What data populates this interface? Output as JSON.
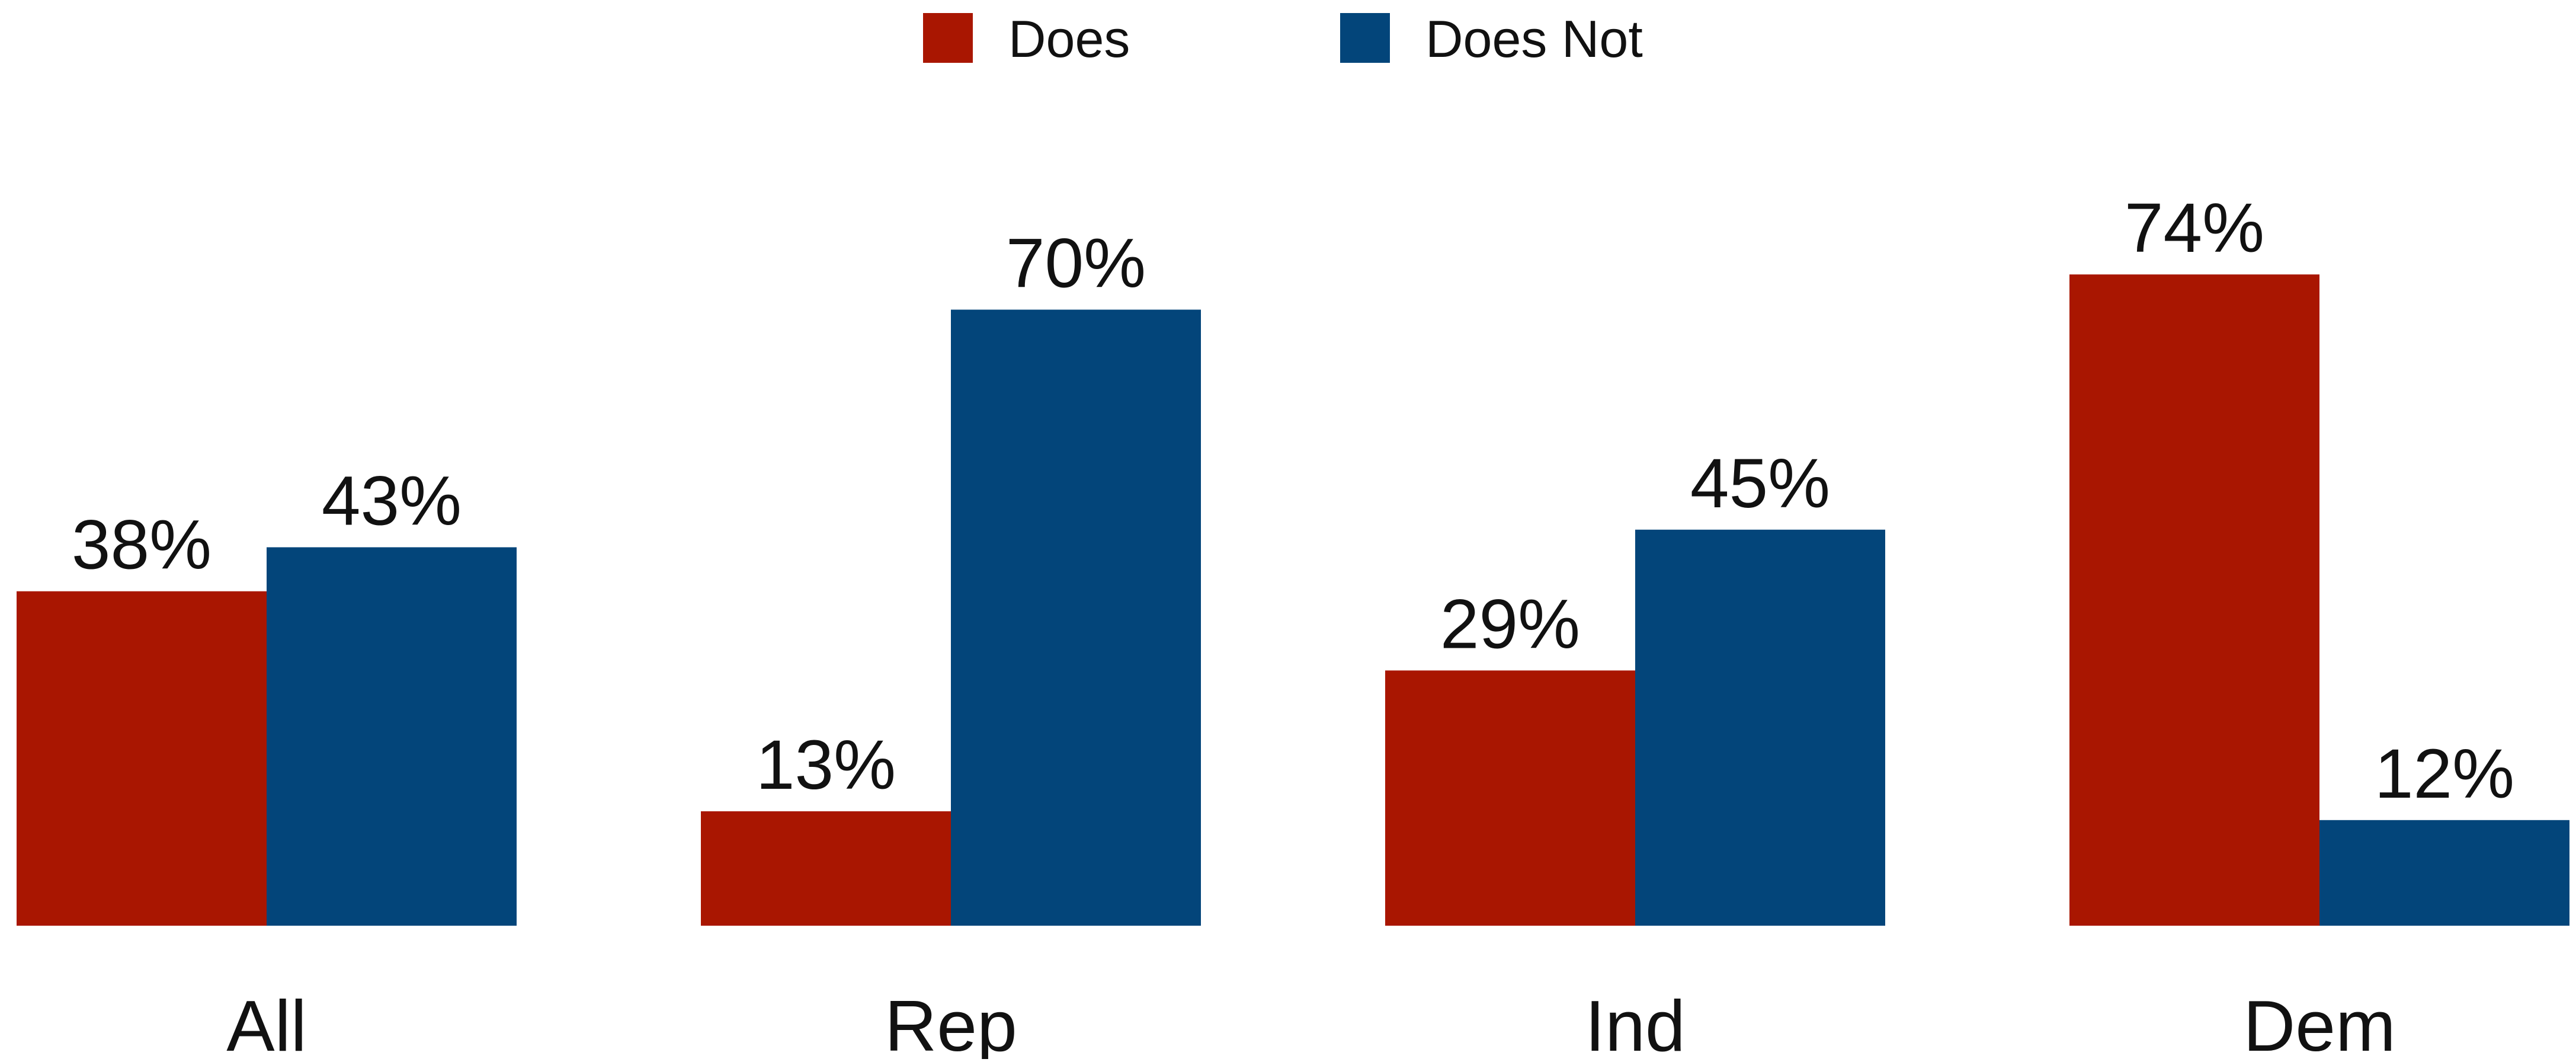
{
  "chart_data": {
    "type": "bar",
    "categories": [
      "All",
      "Rep",
      "Ind",
      "Dem"
    ],
    "series": [
      {
        "name": "Does",
        "values": [
          38,
          13,
          29,
          74
        ],
        "labels": [
          "38%",
          "13%",
          "29%",
          "74%"
        ],
        "color": "#A91601"
      },
      {
        "name": "Does Not",
        "values": [
          43,
          70,
          45,
          12
        ],
        "labels": [
          "43%",
          "70%",
          "45%",
          "12%"
        ],
        "color": "#03457A"
      }
    ],
    "ylim": [
      0,
      100
    ],
    "legend_position": "top-center",
    "grid": false,
    "title": "",
    "xlabel": "",
    "ylabel": ""
  }
}
